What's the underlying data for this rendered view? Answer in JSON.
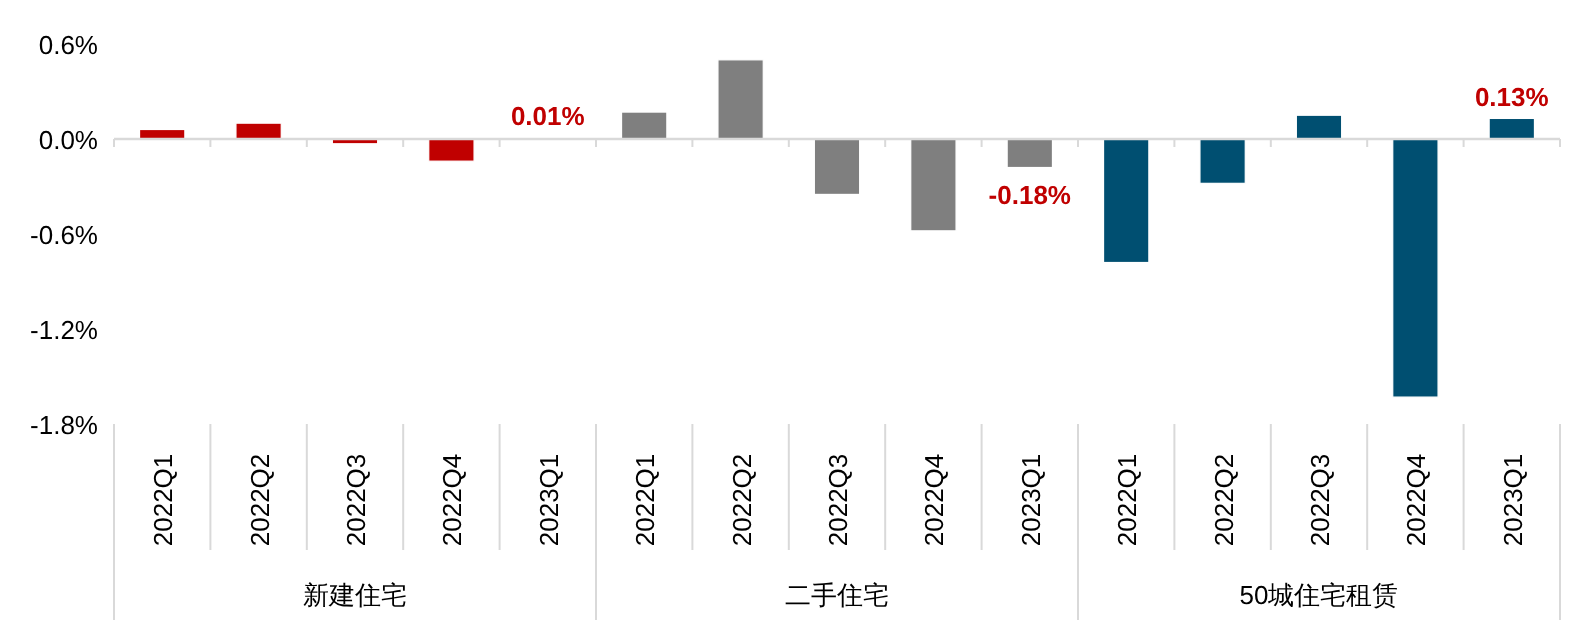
{
  "chart_data": {
    "type": "bar",
    "categories": [
      "2022Q1",
      "2022Q2",
      "2022Q3",
      "2022Q4",
      "2023Q1",
      "2022Q1",
      "2022Q2",
      "2022Q3",
      "2022Q4",
      "2023Q1",
      "2022Q1",
      "2022Q2",
      "2022Q3",
      "2022Q4",
      "2023Q1"
    ],
    "values": [
      0.06,
      0.1,
      -0.03,
      -0.14,
      0.01,
      0.17,
      0.5,
      -0.35,
      -0.58,
      -0.18,
      -0.78,
      -0.28,
      0.15,
      -1.63,
      0.13
    ],
    "colors": [
      "#c00000",
      "#c00000",
      "#c00000",
      "#c00000",
      "#c00000",
      "#7f7f7f",
      "#7f7f7f",
      "#7f7f7f",
      "#7f7f7f",
      "#7f7f7f",
      "#004f71",
      "#004f71",
      "#004f71",
      "#004f71",
      "#004f71"
    ],
    "value_labels": [
      null,
      null,
      null,
      null,
      "0.01%",
      null,
      null,
      null,
      null,
      "-0.18%",
      null,
      null,
      null,
      null,
      "0.13%"
    ],
    "annotations": [
      "新建住宅",
      "二手住宅",
      "50城住宅租赁"
    ],
    "ylim": [
      -1.8,
      0.6
    ],
    "yticks": [
      {
        "value": 0.6,
        "label": "0.6%"
      },
      {
        "value": 0,
        "label": "0.0%"
      },
      {
        "value": -0.6,
        "label": "-0.6%"
      },
      {
        "value": -1.2,
        "label": "-1.2%"
      },
      {
        "value": -1.8,
        "label": "-1.8%"
      }
    ]
  }
}
